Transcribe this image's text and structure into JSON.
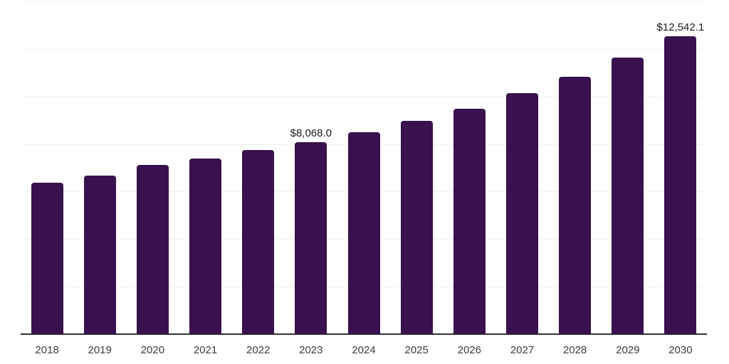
{
  "chart_data": {
    "type": "bar",
    "title": "",
    "xlabel": "",
    "ylabel": "",
    "categories": [
      "2018",
      "2019",
      "2020",
      "2021",
      "2022",
      "2023",
      "2024",
      "2025",
      "2026",
      "2027",
      "2028",
      "2029",
      "2030"
    ],
    "values": [
      6370,
      6670,
      7120,
      7390,
      7750,
      8068.0,
      8500,
      8970,
      9480,
      10140,
      10830,
      11640,
      12542.1
    ],
    "data_labels": [
      "",
      "",
      "",
      "",
      "",
      "$8,068.0",
      "",
      "",
      "",
      "",
      "",
      "",
      "$12,542.1"
    ],
    "ylim": [
      0,
      14000
    ],
    "grid_step": 2000,
    "grid": "horizontal",
    "legend": "none",
    "colors": {
      "bar": "#38114E",
      "value_label": "#1b1b1b",
      "tick_label": "#3d3d3d",
      "axis": "#333333",
      "gridline": "#f1f1f1",
      "background": "#ffffff"
    }
  }
}
